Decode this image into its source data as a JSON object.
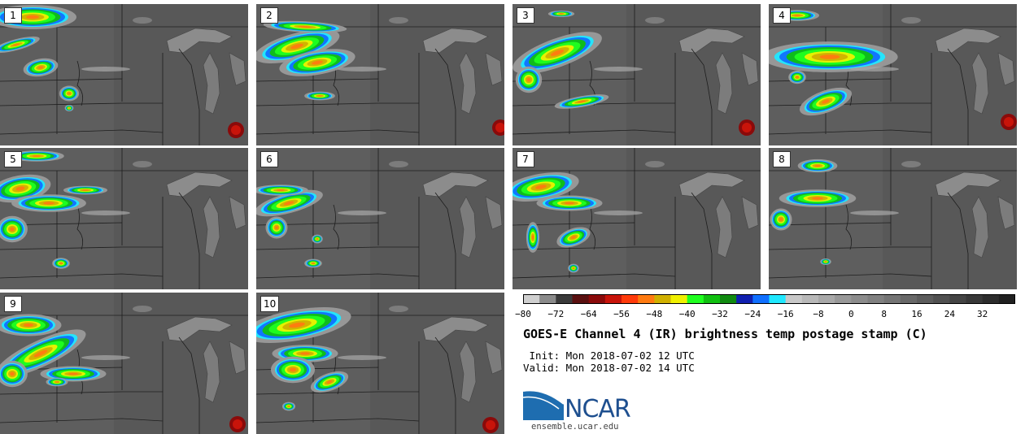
{
  "panels": [
    {
      "label": "1"
    },
    {
      "label": "2"
    },
    {
      "label": "3"
    },
    {
      "label": "4"
    },
    {
      "label": "5"
    },
    {
      "label": "6"
    },
    {
      "label": "7"
    },
    {
      "label": "8"
    },
    {
      "label": "9"
    },
    {
      "label": "10"
    }
  ],
  "colorbar": {
    "colors": [
      "#cfcfcf",
      "#8a8a8a",
      "#3a3a3a",
      "#5a1010",
      "#8a0a0a",
      "#c8140a",
      "#ff3a0a",
      "#ff7a10",
      "#d0b000",
      "#f0f000",
      "#20ff20",
      "#10c010",
      "#108a10",
      "#1020b0",
      "#1070ff",
      "#20e8ff",
      "#c8c8c8",
      "#b8b8b8",
      "#a8a8a8",
      "#989898",
      "#8c8c8c",
      "#808080",
      "#747474",
      "#686868",
      "#5c5c5c",
      "#505050",
      "#444444",
      "#383838",
      "#2c2c2c",
      "#202020"
    ],
    "ticks": [
      "−80",
      "−72",
      "−64",
      "−56",
      "−48",
      "−40",
      "−32",
      "−24",
      "−16",
      "−8",
      "0",
      "8",
      "16",
      "24",
      "32"
    ]
  },
  "title": "GOES-E Channel 4 (IR) brightness temp postage stamp (C)",
  "init": " Init: Mon 2018-07-02 12 UTC",
  "valid": "Valid: Mon 2018-07-02 14 UTC",
  "logo": {
    "text": "NCAR",
    "url": "ensemble.ucar.edu",
    "color": "#1e4f8f"
  }
}
